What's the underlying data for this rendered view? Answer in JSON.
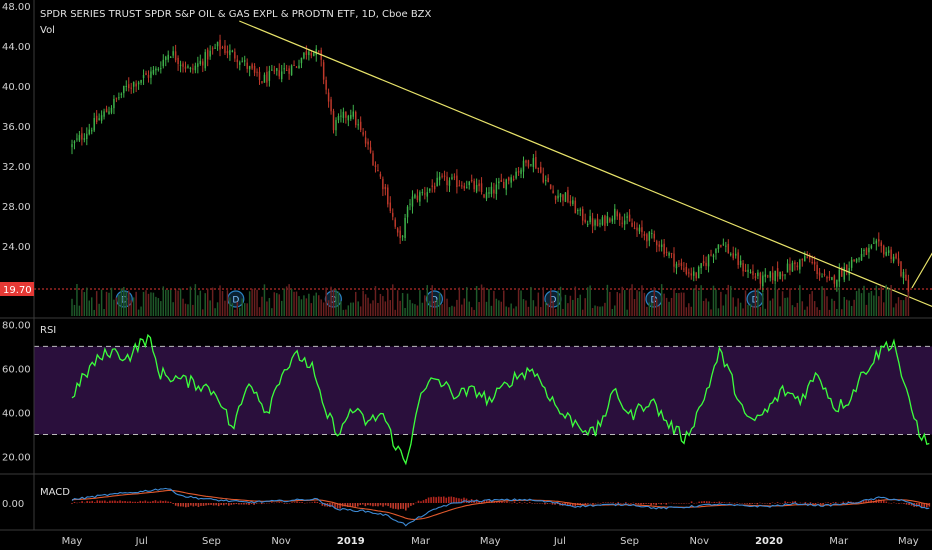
{
  "header": {
    "title": "SPDR SERIES TRUST SPDR S&P OIL & GAS EXPL & PRODTN ETF, 1D, Cboe BZX",
    "vol_label": "Vol"
  },
  "colors": {
    "up": "#3fb24b",
    "down": "#c0392b",
    "trendline": "#e8e36a",
    "rsi_line": "#3cff3c",
    "rsi_band": "#2a0f3c",
    "macd_line": "#3d8bd6",
    "signal_line": "#e0592d",
    "price_line": "#e53935"
  },
  "chart_data": [
    {
      "type": "candlestick",
      "pane": "price",
      "ylim": [
        17.0,
        48.0
      ],
      "y_ticks": [
        "48.00",
        "44.00",
        "40.00",
        "36.00",
        "32.00",
        "28.00",
        "24.00"
      ],
      "last_price_label": "19.70",
      "last_price": 19.7,
      "x_ticks": [
        "May",
        "Jul",
        "Sep",
        "Nov",
        "2019",
        "Mar",
        "May",
        "Jul",
        "Sep",
        "Nov",
        "2020",
        "Mar",
        "May"
      ],
      "dividend_marker": "D",
      "dividend_markers_at_x_index": [
        0.75,
        2.35,
        3.75,
        5.2,
        6.9,
        8.35,
        9.8
      ],
      "close_keypoints": [
        [
          0,
          34.0
        ],
        [
          0.5,
          37.5
        ],
        [
          0.8,
          40.0
        ],
        [
          1.2,
          41.5
        ],
        [
          1.4,
          43.5
        ],
        [
          1.7,
          41.5
        ],
        [
          2.1,
          44.0
        ],
        [
          2.4,
          42.8
        ],
        [
          2.7,
          40.5
        ],
        [
          3.0,
          41.5
        ],
        [
          3.2,
          42.0
        ],
        [
          3.4,
          43.8
        ],
        [
          3.55,
          43.0
        ],
        [
          3.75,
          36.0
        ],
        [
          4.0,
          37.5
        ],
        [
          4.3,
          33.0
        ],
        [
          4.5,
          29.5
        ],
        [
          4.7,
          24.2
        ],
        [
          4.85,
          28.5
        ],
        [
          5.3,
          30.5
        ],
        [
          5.7,
          30.2
        ],
        [
          5.95,
          29.0
        ],
        [
          6.3,
          31.0
        ],
        [
          6.6,
          32.8
        ],
        [
          6.9,
          29.3
        ],
        [
          7.1,
          28.8
        ],
        [
          7.3,
          27.0
        ],
        [
          7.55,
          26.0
        ],
        [
          7.8,
          27.5
        ],
        [
          8.1,
          25.5
        ],
        [
          8.4,
          24.5
        ],
        [
          8.7,
          22.0
        ],
        [
          8.95,
          21.0
        ],
        [
          9.3,
          24.5
        ],
        [
          9.6,
          22.0
        ],
        [
          9.9,
          20.5
        ],
        [
          10.2,
          21.5
        ],
        [
          10.55,
          22.8
        ],
        [
          10.85,
          20.2
        ],
        [
          11.2,
          22.5
        ],
        [
          11.55,
          24.0
        ],
        [
          11.8,
          23.0
        ],
        [
          12.0,
          19.7
        ]
      ],
      "trendline_points": [
        [
          2.4,
          46.5
        ],
        [
          12.5,
          17.5
        ]
      ],
      "projection_points": [
        [
          12.05,
          19.8
        ],
        [
          13.2,
          33.5
        ]
      ]
    },
    {
      "type": "bar",
      "pane": "volume",
      "series": [
        {
          "values": []
        }
      ]
    },
    {
      "type": "line",
      "pane": "rsi",
      "label": "RSI",
      "ylim": [
        13.0,
        82.0
      ],
      "y_ticks": [
        "80.00",
        "60.00",
        "40.00",
        "20.00"
      ],
      "band": [
        30,
        70
      ],
      "keypoints": [
        [
          0,
          48
        ],
        [
          0.3,
          62
        ],
        [
          0.55,
          68
        ],
        [
          0.8,
          65
        ],
        [
          1.0,
          72
        ],
        [
          1.1,
          74
        ],
        [
          1.25,
          58
        ],
        [
          1.55,
          55
        ],
        [
          1.9,
          52
        ],
        [
          2.1,
          48
        ],
        [
          2.3,
          32
        ],
        [
          2.55,
          55
        ],
        [
          2.8,
          40
        ],
        [
          3.0,
          58
        ],
        [
          3.25,
          66
        ],
        [
          3.45,
          60
        ],
        [
          3.6,
          42
        ],
        [
          3.85,
          30
        ],
        [
          4.0,
          42
        ],
        [
          4.25,
          35
        ],
        [
          4.45,
          40
        ],
        [
          4.6,
          28
        ],
        [
          4.8,
          16
        ],
        [
          4.95,
          44
        ],
        [
          5.2,
          56
        ],
        [
          5.5,
          48
        ],
        [
          5.8,
          50
        ],
        [
          6.0,
          45
        ],
        [
          6.3,
          55
        ],
        [
          6.6,
          60
        ],
        [
          6.85,
          48
        ],
        [
          7.0,
          40
        ],
        [
          7.2,
          36
        ],
        [
          7.5,
          30
        ],
        [
          7.8,
          50
        ],
        [
          8.0,
          38
        ],
        [
          8.3,
          46
        ],
        [
          8.55,
          35
        ],
        [
          8.8,
          28
        ],
        [
          9.05,
          45
        ],
        [
          9.3,
          68
        ],
        [
          9.5,
          52
        ],
        [
          9.7,
          35
        ],
        [
          9.95,
          40
        ],
        [
          10.2,
          50
        ],
        [
          10.45,
          46
        ],
        [
          10.7,
          58
        ],
        [
          10.95,
          42
        ],
        [
          11.15,
          46
        ],
        [
          11.35,
          58
        ],
        [
          11.65,
          70
        ],
        [
          11.8,
          72
        ],
        [
          11.95,
          50
        ],
        [
          12.15,
          32
        ],
        [
          12.3,
          24
        ]
      ]
    },
    {
      "type": "line",
      "pane": "macd",
      "label": "MACD",
      "ylim": [
        -4.0,
        4.0
      ],
      "y_ticks": [
        "0.00"
      ],
      "macd_keypoints": [
        [
          0,
          0.5
        ],
        [
          0.5,
          1.2
        ],
        [
          1.0,
          1.7
        ],
        [
          1.35,
          2.2
        ],
        [
          1.6,
          1.0
        ],
        [
          2.0,
          0.5
        ],
        [
          2.5,
          0.1
        ],
        [
          3.0,
          0.3
        ],
        [
          3.5,
          0.6
        ],
        [
          3.8,
          -0.9
        ],
        [
          4.2,
          -1.2
        ],
        [
          4.5,
          -1.8
        ],
        [
          4.8,
          -3.3
        ],
        [
          5.0,
          -2.0
        ],
        [
          5.3,
          -0.5
        ],
        [
          5.6,
          0.2
        ],
        [
          6.0,
          0.4
        ],
        [
          6.5,
          0.5
        ],
        [
          6.9,
          0.1
        ],
        [
          7.2,
          -0.5
        ],
        [
          7.6,
          -0.3
        ],
        [
          8.0,
          -0.2
        ],
        [
          8.4,
          -0.8
        ],
        [
          8.8,
          -0.6
        ],
        [
          9.2,
          -0.2
        ],
        [
          9.6,
          -0.4
        ],
        [
          10.0,
          -0.5
        ],
        [
          10.4,
          -0.1
        ],
        [
          10.8,
          -0.4
        ],
        [
          11.2,
          0.0
        ],
        [
          11.6,
          0.8
        ],
        [
          11.9,
          0.4
        ],
        [
          12.15,
          -0.5
        ],
        [
          12.3,
          -0.9
        ]
      ]
    }
  ]
}
